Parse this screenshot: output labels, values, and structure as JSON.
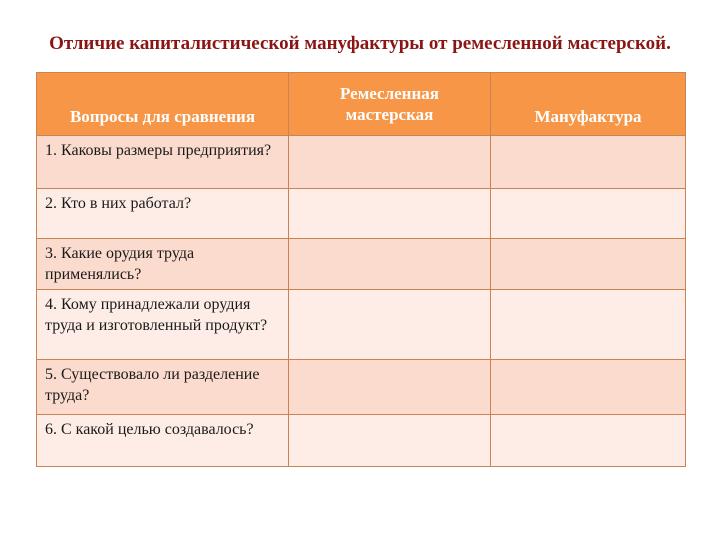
{
  "title": "Отличие капиталистической мануфактуры от ремесленной мастерской.",
  "table": {
    "headers": [
      "Вопросы для сравнения",
      "Ремесленная мастерская",
      "Мануфактура"
    ],
    "rows": [
      {
        "question": "1. Каковы размеры предприятия?",
        "workshop": "",
        "manufactory": ""
      },
      {
        "question": "2. Кто в них работал?",
        "workshop": "",
        "manufactory": ""
      },
      {
        "question": "3. Какие орудия труда применялись?",
        "workshop": "",
        "manufactory": ""
      },
      {
        "question": "4. Кому принадлежали орудия труда и изготовленный продукт?",
        "workshop": "",
        "manufactory": ""
      },
      {
        "question": "5. Существовало ли разделение труда?",
        "workshop": "",
        "manufactory": ""
      },
      {
        "question": "6. С какой целью создавалось?",
        "workshop": "",
        "manufactory": ""
      }
    ]
  },
  "colors": {
    "title": "#8B1414",
    "header": "#F79646",
    "row_odd": "#FBDBCD",
    "row_even": "#FDEDE6",
    "border": "#C98355"
  }
}
